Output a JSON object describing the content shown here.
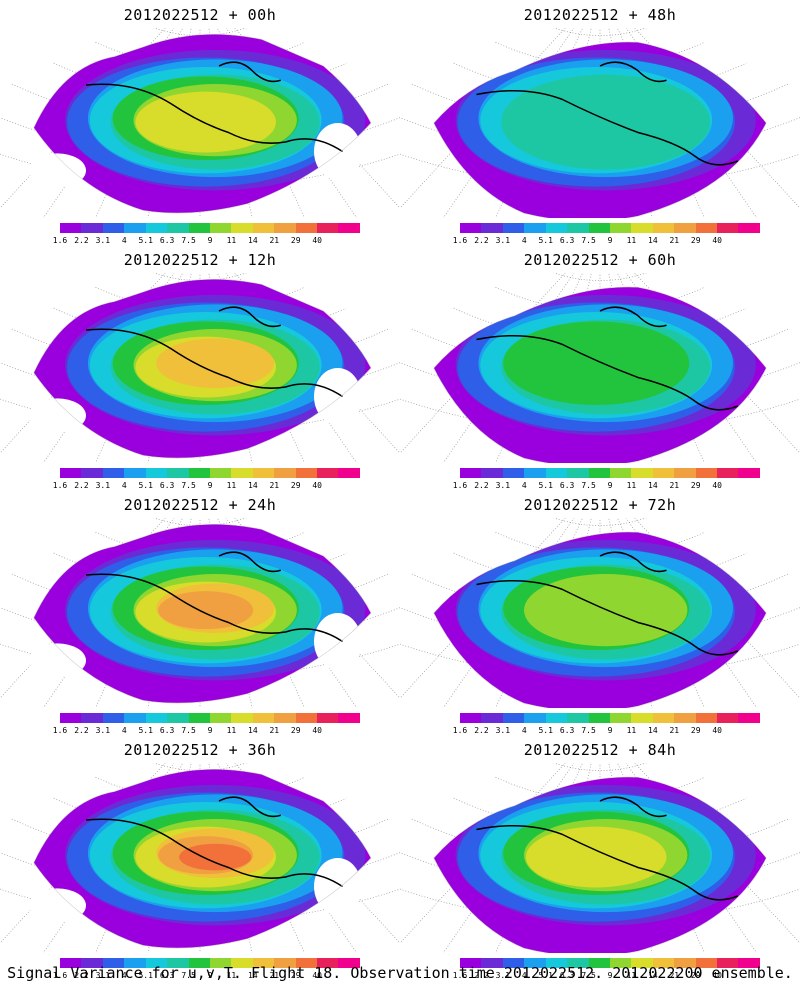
{
  "panels": [
    {
      "title": "2012022512 + 00h"
    },
    {
      "title": "2012022512 + 48h"
    },
    {
      "title": "2012022512 + 12h"
    },
    {
      "title": "2012022512 + 60h"
    },
    {
      "title": "2012022512 + 24h"
    },
    {
      "title": "2012022512 + 72h"
    },
    {
      "title": "2012022512 + 36h"
    },
    {
      "title": "2012022512 + 84h"
    }
  ],
  "colorbar": {
    "labels": [
      "1.6",
      "2.2",
      "3.1",
      "4",
      "5.1",
      "6.3",
      "7.5",
      "9",
      "11",
      "14",
      "21",
      "29",
      "40"
    ],
    "colors": [
      "#9900dd",
      "#6a2bd6",
      "#2f5ee8",
      "#1aa0ee",
      "#16c8dc",
      "#1ec7a3",
      "#22c43e",
      "#8fd630",
      "#d8dc2a",
      "#f0c03a",
      "#f0a040",
      "#f2703a",
      "#e8205c",
      "#f0008c"
    ]
  },
  "caption": "Signal Variance for u,v,T. Flight 18. Observation time 2012022512. 2012022200 ensemble."
}
